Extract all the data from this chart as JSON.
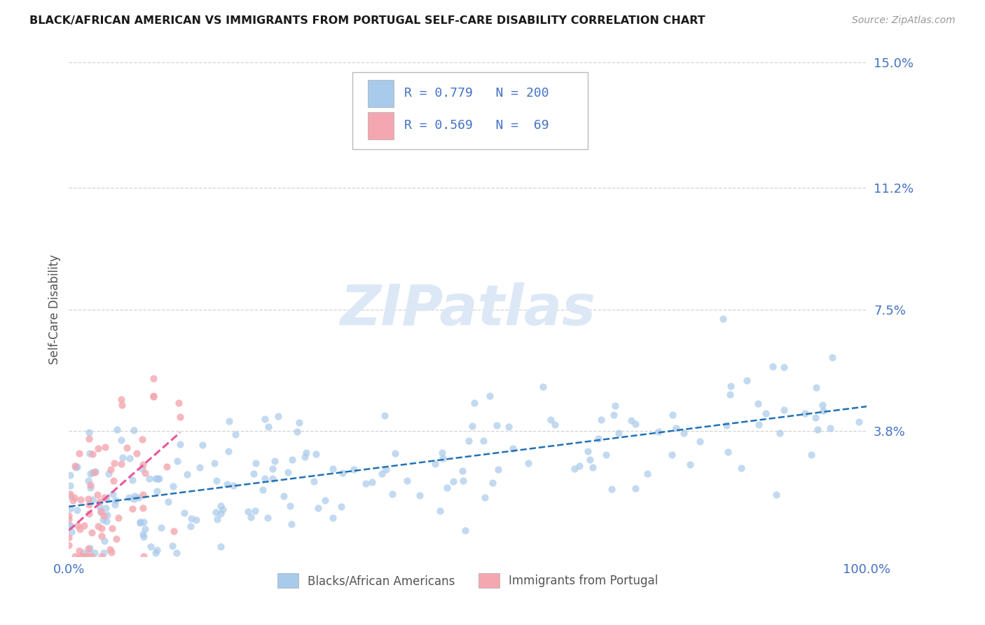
{
  "title": "BLACK/AFRICAN AMERICAN VS IMMIGRANTS FROM PORTUGAL SELF-CARE DISABILITY CORRELATION CHART",
  "source": "Source: ZipAtlas.com",
  "ylabel": "Self-Care Disability",
  "xmin": 0.0,
  "xmax": 100.0,
  "ymin": 0.0,
  "ymax": 15.0,
  "yticks": [
    3.8,
    7.5,
    11.2,
    15.0
  ],
  "ytick_labels": [
    "3.8%",
    "7.5%",
    "11.2%",
    "15.0%"
  ],
  "xtick_labels": [
    "0.0%",
    "100.0%"
  ],
  "legend_blue_label": "Blacks/African Americans",
  "legend_pink_label": "Immigrants from Portugal",
  "R_blue": 0.779,
  "N_blue": 200,
  "R_pink": 0.569,
  "N_pink": 69,
  "blue_dot_color": "#a8caeb",
  "pink_dot_color": "#f4a7b0",
  "blue_line_color": "#2171b5",
  "pink_line_color": "#e8569a",
  "title_color": "#1a1a1a",
  "axis_color": "#4472c4",
  "watermark_color": "#dce8f5",
  "background_color": "#ffffff",
  "grid_color": "#c8c8c8",
  "seed": 42
}
